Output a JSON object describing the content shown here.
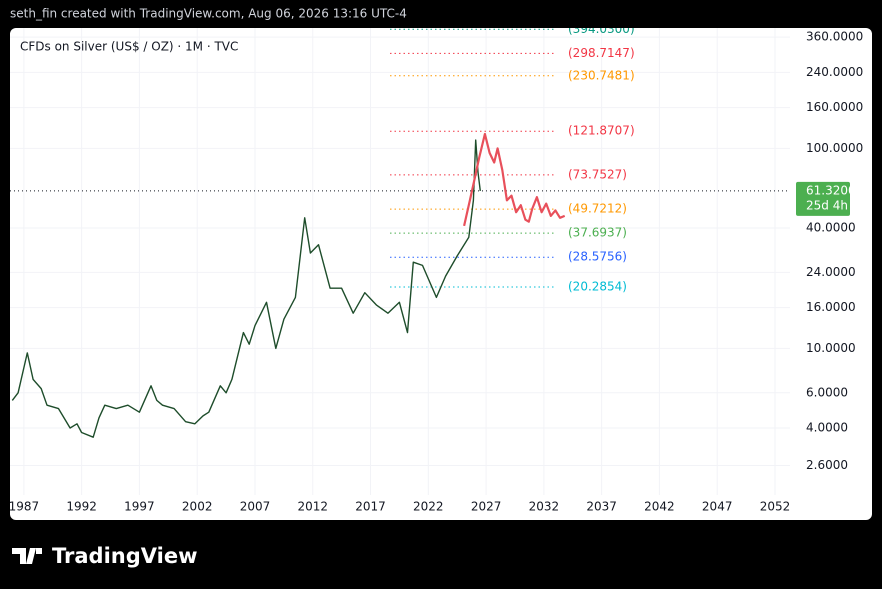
{
  "header": {
    "credit": "seth_fin created with TradingView.com, Aug 06, 2026 13:16 UTC-4"
  },
  "chart_data": {
    "type": "line",
    "title": "CFDs on Silver (US$ / OZ) · 1M · TVC",
    "log_scale": true,
    "grid": true,
    "xlim": [
      1985.8,
      2053.3
    ],
    "ylim": [
      1.85,
      400
    ],
    "xticks": [
      1987,
      1992,
      1997,
      2002,
      2007,
      2012,
      2017,
      2022,
      2027,
      2032,
      2037,
      2042,
      2047,
      2052
    ],
    "yticks": [
      {
        "value": 360,
        "label": "360.0000"
      },
      {
        "value": 240,
        "label": "240.0000"
      },
      {
        "value": 160,
        "label": "160.0000"
      },
      {
        "value": 100,
        "label": "100.0000"
      },
      {
        "value": 40,
        "label": "40.0000"
      },
      {
        "value": 24,
        "label": "24.0000"
      },
      {
        "value": 16,
        "label": "16.0000"
      },
      {
        "value": 10,
        "label": "10.0000"
      },
      {
        "value": 6,
        "label": "6.0000"
      },
      {
        "value": 4,
        "label": "4.0000"
      },
      {
        "value": 2.6,
        "label": "2.6000"
      }
    ],
    "series": [
      {
        "color": "#1e4d2b",
        "x": [
          1986,
          1986.5,
          1987.3,
          1987.8,
          1988.5,
          1989,
          1990,
          1991,
          1991.6,
          1992,
          1993,
          1993.5,
          1994,
          1995,
          1996,
          1997,
          1998,
          1998.5,
          1999,
          2000,
          2001,
          2001.8,
          2002.5,
          2003,
          2004,
          2004.5,
          2005,
          2006,
          2006.5,
          2007,
          2008,
          2008.8,
          2009.5,
          2010.5,
          2011.3,
          2011.8,
          2012.5,
          2013.5,
          2014.5,
          2015.5,
          2016.5,
          2017.5,
          2018.5,
          2019.5,
          2020.2,
          2020.7,
          2021.5,
          2022.7,
          2023.5,
          2024.5,
          2025.5,
          2025.9,
          2026.1,
          2026.3,
          2026.5
        ],
        "values": [
          5.5,
          6,
          9.5,
          7,
          6.3,
          5.2,
          5,
          4,
          4.2,
          3.8,
          3.6,
          4.5,
          5.2,
          5,
          5.2,
          4.8,
          6.5,
          5.5,
          5.2,
          5,
          4.3,
          4.2,
          4.6,
          4.8,
          6.5,
          6,
          7,
          12,
          10.5,
          13,
          17,
          10,
          14,
          18,
          45,
          30,
          33,
          20,
          20,
          15,
          19,
          16.5,
          15,
          17,
          12,
          27,
          26,
          18,
          23,
          29,
          36,
          55,
          110,
          76,
          61.32
        ]
      },
      {
        "color": "#e8505b",
        "x": [
          2025.1,
          2025.6,
          2026.0,
          2026.4,
          2026.9,
          2027.3,
          2027.7,
          2028.0,
          2028.4,
          2028.8,
          2029.2,
          2029.6,
          2030.0,
          2030.4,
          2030.7,
          2031.0,
          2031.4,
          2031.8,
          2032.2,
          2032.6,
          2033.0,
          2033.4,
          2033.8
        ],
        "values": [
          41,
          55,
          70,
          90,
          118,
          95,
          85,
          100,
          78,
          55,
          58,
          48,
          52,
          44,
          43,
          50,
          57,
          48,
          53,
          46,
          49,
          45,
          46
        ]
      }
    ],
    "levels": [
      {
        "value": 394.03,
        "label": "(394.0300)",
        "color": "#089981"
      },
      {
        "value": 298.7147,
        "label": "(298.7147)",
        "color": "#f23645"
      },
      {
        "value": 230.7481,
        "label": "(230.7481)",
        "color": "#ff9800"
      },
      {
        "value": 121.8707,
        "label": "(121.8707)",
        "color": "#f23645"
      },
      {
        "value": 73.7527,
        "label": "(73.7527)",
        "color": "#f23645"
      },
      {
        "value": 49.7212,
        "label": "(49.7212)",
        "color": "#ff9800"
      },
      {
        "value": 37.6937,
        "label": "(37.6937)",
        "color": "#4caf50"
      },
      {
        "value": 28.5756,
        "label": "(28.5756)",
        "color": "#2962ff"
      },
      {
        "value": 20.2854,
        "label": "(20.2854)",
        "color": "#00bcd4"
      }
    ],
    "last_price": {
      "value": 61.32,
      "label": "61.3200",
      "countdown": "25d 4h",
      "color": "#4caf50"
    }
  },
  "footer": {
    "brand": "TradingView"
  }
}
